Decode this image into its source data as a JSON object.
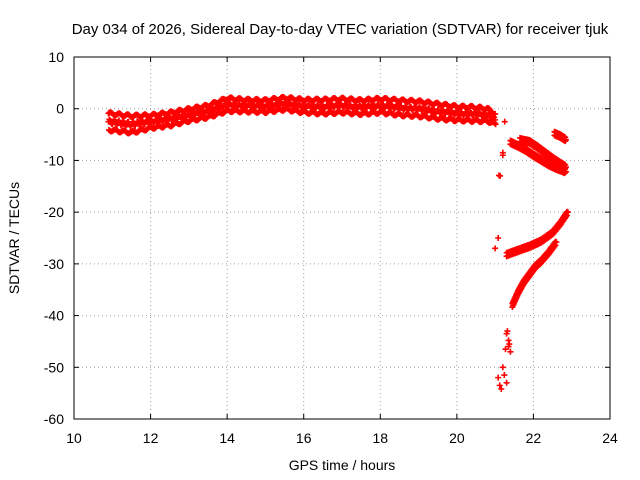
{
  "chart_data": {
    "type": "scatter",
    "title": "Day 034 of 2026, Sidereal Day-to-day VTEC variation (SDTVAR) for receiver tjuk",
    "xlabel": "GPS time / hours",
    "ylabel": "SDTVAR / TECUs",
    "xlim": [
      10,
      24
    ],
    "ylim": [
      -60,
      10
    ],
    "xticks": [
      "10",
      "12",
      "14",
      "16",
      "18",
      "20",
      "22",
      "24"
    ],
    "yticks": [
      "10",
      "0",
      "-10",
      "-20",
      "-30",
      "-40",
      "-50",
      "-60"
    ],
    "grid": true,
    "marker": "plus",
    "color": "#ff0000",
    "bands": [
      {
        "x": [
          10.9,
          11.5,
          12.0,
          12.5,
          13.0,
          13.5,
          14.0,
          14.5,
          15.0,
          15.5,
          16.0,
          16.5,
          17.0,
          17.5,
          18.0,
          18.5,
          19.0,
          19.5,
          20.0,
          20.4,
          20.8,
          21.0
        ],
        "center": [
          -2.5,
          -3.0,
          -2.5,
          -2.0,
          -1.2,
          -0.5,
          0.8,
          0.6,
          0.5,
          1.0,
          0.5,
          0.4,
          0.6,
          0.3,
          0.6,
          0.2,
          0.0,
          -0.5,
          -0.9,
          -1.0,
          -1.2,
          -2.0
        ],
        "spread": [
          1.6,
          1.6,
          1.2,
          1.2,
          1.1,
          1.1,
          1.2,
          1.1,
          1.1,
          1.1,
          1.2,
          1.3,
          1.3,
          1.3,
          1.3,
          1.4,
          1.4,
          1.4,
          1.3,
          1.3,
          1.2,
          1.0
        ]
      }
    ],
    "series": [
      {
        "x": [
          21.4,
          21.6,
          21.8,
          22.0,
          22.2,
          22.4,
          22.6,
          22.85
        ],
        "y": [
          -6.5,
          -7.2,
          -8.0,
          -9.0,
          -9.9,
          -10.8,
          -11.5,
          -12.2
        ]
      },
      {
        "x": [
          21.65,
          21.9,
          22.1,
          22.3,
          22.5,
          22.7,
          22.85
        ],
        "y": [
          -6.0,
          -6.4,
          -7.4,
          -8.5,
          -9.6,
          -10.6,
          -11.3
        ]
      },
      {
        "x": [
          21.3,
          21.6,
          21.9,
          22.2,
          22.5,
          22.7,
          22.9
        ],
        "y": [
          -28.2,
          -27.4,
          -26.6,
          -25.6,
          -24.0,
          -22.2,
          -20.0
        ]
      },
      {
        "x": [
          21.45,
          21.6,
          21.75,
          21.9,
          22.05,
          22.2,
          22.4,
          22.6
        ],
        "y": [
          -38.0,
          -35.5,
          -33.5,
          -32.0,
          -30.5,
          -29.5,
          -27.8,
          -25.8
        ]
      },
      {
        "x": [
          22.55,
          22.7,
          22.85
        ],
        "y": [
          -4.8,
          -5.3,
          -6.0
        ]
      },
      {
        "x": [
          21.0,
          21.08,
          21.13,
          21.2,
          21.25,
          21.3,
          21.35,
          21.08,
          21.12,
          21.16,
          21.2,
          21.24,
          21.3,
          21.27,
          21.35,
          21.32,
          21.37,
          21.4,
          21.1,
          21.2
        ],
        "y": [
          -27.0,
          -25.0,
          -13.0,
          -9.0,
          -2.5,
          -43.5,
          -44.8,
          -52.0,
          -53.5,
          -54.2,
          -50.0,
          -51.5,
          -53.0,
          -46.5,
          -46.0,
          -43.0,
          -45.5,
          -47.0,
          -12.9,
          -8.5
        ]
      }
    ]
  }
}
